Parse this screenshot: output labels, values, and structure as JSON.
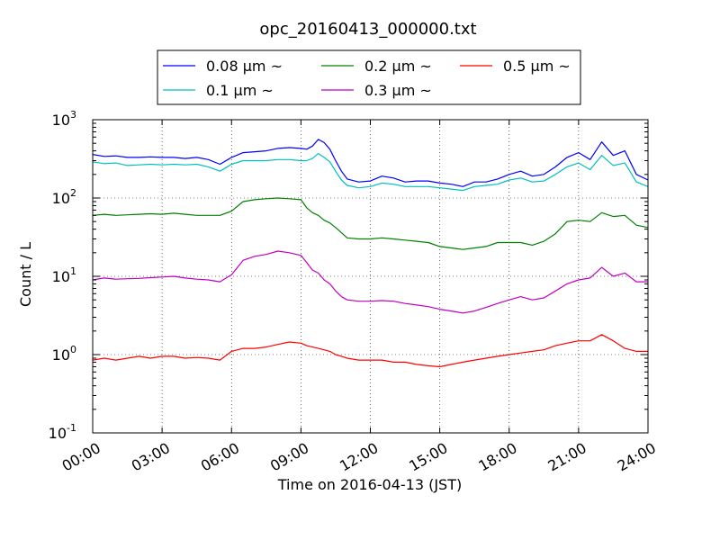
{
  "chart_data": {
    "type": "line",
    "title": "opc_20160413_000000.txt",
    "xlabel": "Time on 2016-04-13 (JST)",
    "ylabel": "Count / L",
    "x_unit": "hours",
    "xlim": [
      0,
      24
    ],
    "ylim": [
      0.1,
      1000
    ],
    "yscale": "log",
    "grid": true,
    "legend_position": "top-center",
    "x_tick_labels": [
      "00:00",
      "03:00",
      "06:00",
      "09:00",
      "12:00",
      "15:00",
      "18:00",
      "21:00",
      "24:00"
    ],
    "y_tick_labels": [
      {
        "base": "10",
        "exp": "-1"
      },
      {
        "base": "10",
        "exp": "0"
      },
      {
        "base": "10",
        "exp": "1"
      },
      {
        "base": "10",
        "exp": "2"
      },
      {
        "base": "10",
        "exp": "3"
      }
    ],
    "x": [
      0,
      0.5,
      1,
      1.5,
      2,
      2.5,
      3,
      3.5,
      4,
      4.5,
      5,
      5.5,
      6,
      6.5,
      7,
      7.5,
      8,
      8.5,
      9,
      9.25,
      9.5,
      9.75,
      10,
      10.25,
      10.5,
      10.75,
      11,
      11.5,
      12,
      12.5,
      13,
      13.5,
      14,
      14.5,
      15,
      15.5,
      16,
      16.5,
      17,
      17.5,
      18,
      18.5,
      19,
      19.5,
      20,
      20.5,
      21,
      21.5,
      22,
      22.5,
      23,
      23.5,
      24
    ],
    "series": [
      {
        "name": "0.08 μm ~",
        "color": "#0000ff",
        "values": [
          360,
          340,
          345,
          330,
          330,
          335,
          330,
          330,
          320,
          330,
          310,
          270,
          330,
          380,
          390,
          400,
          430,
          440,
          430,
          420,
          460,
          560,
          510,
          420,
          300,
          220,
          175,
          160,
          165,
          190,
          180,
          160,
          165,
          165,
          155,
          150,
          140,
          160,
          160,
          175,
          200,
          220,
          190,
          200,
          250,
          330,
          380,
          310,
          520,
          350,
          400,
          200,
          170
        ]
      },
      {
        "name": "0.1 μm ~",
        "color": "#00bfbf",
        "values": [
          290,
          275,
          280,
          260,
          265,
          270,
          265,
          270,
          265,
          270,
          250,
          220,
          270,
          300,
          300,
          300,
          310,
          310,
          300,
          300,
          320,
          370,
          330,
          290,
          220,
          170,
          145,
          135,
          140,
          155,
          150,
          140,
          140,
          140,
          135,
          130,
          125,
          140,
          145,
          150,
          170,
          180,
          160,
          165,
          200,
          250,
          280,
          230,
          350,
          260,
          280,
          160,
          140
        ]
      },
      {
        "name": "0.2 μm ~",
        "color": "#008000",
        "values": [
          60,
          62,
          60,
          61,
          62,
          63,
          62,
          64,
          62,
          60,
          60,
          60,
          68,
          90,
          95,
          98,
          100,
          98,
          95,
          75,
          65,
          60,
          52,
          48,
          42,
          36,
          31,
          30,
          30,
          31,
          30,
          29,
          28,
          27,
          24,
          23,
          22,
          23,
          24,
          27,
          27,
          27,
          25,
          28,
          35,
          50,
          52,
          50,
          65,
          58,
          60,
          45,
          42
        ]
      },
      {
        "name": "0.3 μm ~",
        "color": "#bf00bf",
        "values": [
          9,
          9.5,
          9.2,
          9.3,
          9.4,
          9.6,
          9.8,
          10,
          9.5,
          9.2,
          9,
          8.5,
          10.5,
          16,
          18,
          19,
          21,
          20,
          18.5,
          15,
          12,
          11,
          9,
          8,
          6.5,
          5.5,
          5,
          4.8,
          4.8,
          4.9,
          4.8,
          4.5,
          4.3,
          4.1,
          3.8,
          3.6,
          3.4,
          3.6,
          4,
          4.5,
          5,
          5.5,
          5,
          5.3,
          6.5,
          8,
          9,
          9.5,
          13,
          10,
          11,
          8.5,
          8.5
        ]
      },
      {
        "name": "0.5 μm ~",
        "color": "#ff0000",
        "values": [
          0.85,
          0.9,
          0.85,
          0.9,
          0.95,
          0.9,
          0.95,
          0.95,
          0.9,
          0.92,
          0.9,
          0.85,
          1.1,
          1.2,
          1.2,
          1.25,
          1.35,
          1.45,
          1.4,
          1.3,
          1.25,
          1.2,
          1.15,
          1.1,
          1.0,
          0.95,
          0.9,
          0.85,
          0.85,
          0.85,
          0.8,
          0.8,
          0.75,
          0.72,
          0.7,
          0.75,
          0.8,
          0.85,
          0.9,
          0.95,
          1.0,
          1.05,
          1.1,
          1.15,
          1.3,
          1.4,
          1.5,
          1.5,
          1.8,
          1.5,
          1.2,
          1.1,
          1.1
        ]
      }
    ]
  }
}
